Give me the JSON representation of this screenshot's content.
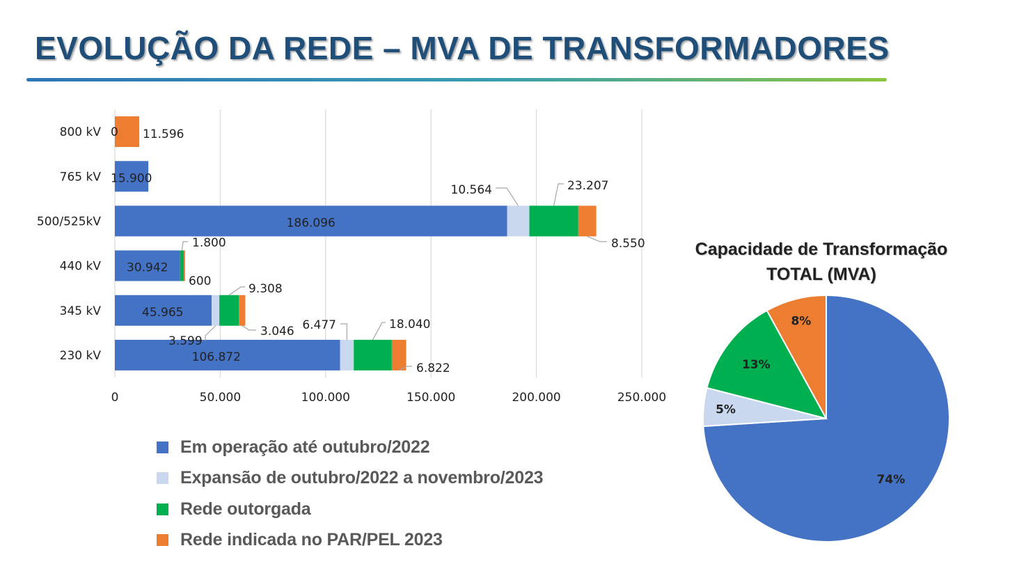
{
  "slide": {
    "title": "EVOLUÇÃO DA REDE – MVA DE TRANSFORMADORES"
  },
  "colors": {
    "em_operacao": "#4472c4",
    "expansao": "#c9d8ee",
    "outorgada": "#00b050",
    "indicada": "#ed7d31",
    "title": "#1f4e79"
  },
  "chart_data": [
    {
      "type": "bar",
      "orientation": "horizontal",
      "stacked": true,
      "categories": [
        "800 kV",
        "765 kV",
        "500/525kV",
        "440 kV",
        "345 kV",
        "230 kV"
      ],
      "series": [
        {
          "name": "Em operação até outubro/2022",
          "color": "#4472c4",
          "values": [
            0,
            15900,
            186096,
            30942,
            45965,
            106872
          ],
          "labels": [
            "0",
            "15.900",
            "186.096",
            "30.942",
            "45.965",
            "106.872"
          ]
        },
        {
          "name": "Expansão de outubro/2022 a novembro/2023",
          "color": "#c9d8ee",
          "values": [
            0,
            0,
            10564,
            0,
            3599,
            6477
          ],
          "labels": [
            "",
            "",
            "10.564",
            "",
            "3.599",
            "6.477"
          ]
        },
        {
          "name": "Rede outorgada",
          "color": "#00b050",
          "values": [
            0,
            0,
            23207,
            1800,
            9308,
            18040
          ],
          "labels": [
            "",
            "",
            "23.207",
            "1.800",
            "9.308",
            "18.040"
          ]
        },
        {
          "name": "Rede indicada no PAR/PEL 2023",
          "color": "#ed7d31",
          "values": [
            11596,
            0,
            8550,
            600,
            3046,
            6822
          ],
          "labels": [
            "11.596",
            "",
            "8.550",
            "600",
            "3.046",
            "6.822"
          ]
        }
      ],
      "x_ticks": [
        "0",
        "50.000",
        "100.000",
        "150.000",
        "200.000",
        "250.000"
      ],
      "xlim": [
        0,
        250000
      ],
      "grid": true,
      "legend_position": "bottom"
    },
    {
      "type": "pie",
      "title_lines": [
        "Capacidade de Transformação",
        "TOTAL (MVA)"
      ],
      "slices": [
        {
          "name": "Em operação até outubro/2022",
          "value": 74,
          "label": "74%",
          "color": "#4472c4"
        },
        {
          "name": "Expansão de outubro/2022 a novembro/2023",
          "value": 5,
          "label": "5%",
          "color": "#c9d8ee"
        },
        {
          "name": "Rede outorgada",
          "value": 13,
          "label": "13%",
          "color": "#00b050"
        },
        {
          "name": "Rede indicada no PAR/PEL 2023",
          "value": 8,
          "label": "8%",
          "color": "#ed7d31"
        }
      ]
    }
  ]
}
